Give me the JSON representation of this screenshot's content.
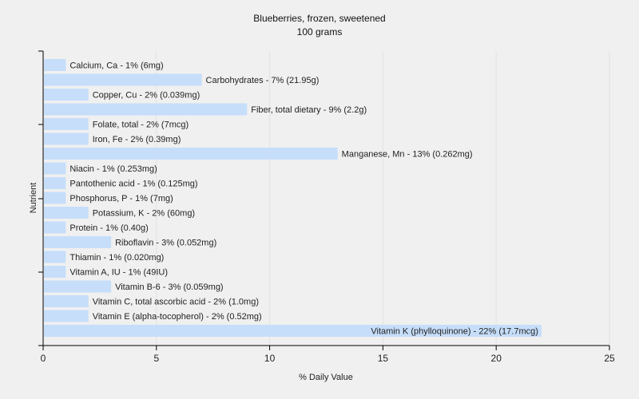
{
  "chart_data": {
    "type": "bar",
    "orientation": "horizontal",
    "title": "Blueberries, frozen, sweetened",
    "subtitle": "100 grams",
    "xlabel": "% Daily Value",
    "ylabel": "Nutrient",
    "xlim": [
      0,
      25
    ],
    "xticks": [
      0,
      5,
      10,
      15,
      20,
      25
    ],
    "grid": true,
    "bar_color": "#c6defa",
    "bars": [
      {
        "value": 1,
        "label": "Calcium, Ca - 1% (6mg)"
      },
      {
        "value": 7,
        "label": "Carbohydrates - 7% (21.95g)"
      },
      {
        "value": 2,
        "label": "Copper, Cu - 2% (0.039mg)"
      },
      {
        "value": 9,
        "label": "Fiber, total dietary - 9% (2.2g)"
      },
      {
        "value": 2,
        "label": "Folate, total - 2% (7mcg)"
      },
      {
        "value": 2,
        "label": "Iron, Fe - 2% (0.39mg)"
      },
      {
        "value": 13,
        "label": "Manganese, Mn - 13% (0.262mg)"
      },
      {
        "value": 1,
        "label": "Niacin - 1% (0.253mg)"
      },
      {
        "value": 1,
        "label": "Pantothenic acid - 1% (0.125mg)"
      },
      {
        "value": 1,
        "label": "Phosphorus, P - 1% (7mg)"
      },
      {
        "value": 2,
        "label": "Potassium, K - 2% (60mg)"
      },
      {
        "value": 1,
        "label": "Protein - 1% (0.40g)"
      },
      {
        "value": 3,
        "label": "Riboflavin - 3% (0.052mg)"
      },
      {
        "value": 1,
        "label": "Thiamin - 1% (0.020mg)"
      },
      {
        "value": 1,
        "label": "Vitamin A, IU - 1% (49IU)"
      },
      {
        "value": 3,
        "label": "Vitamin B-6 - 3% (0.059mg)"
      },
      {
        "value": 2,
        "label": "Vitamin C, total ascorbic acid - 2% (1.0mg)"
      },
      {
        "value": 2,
        "label": "Vitamin E (alpha-tocopherol) - 2% (0.52mg)"
      },
      {
        "value": 22,
        "label": "Vitamin K (phylloquinone) - 22% (17.7mcg)"
      }
    ]
  }
}
